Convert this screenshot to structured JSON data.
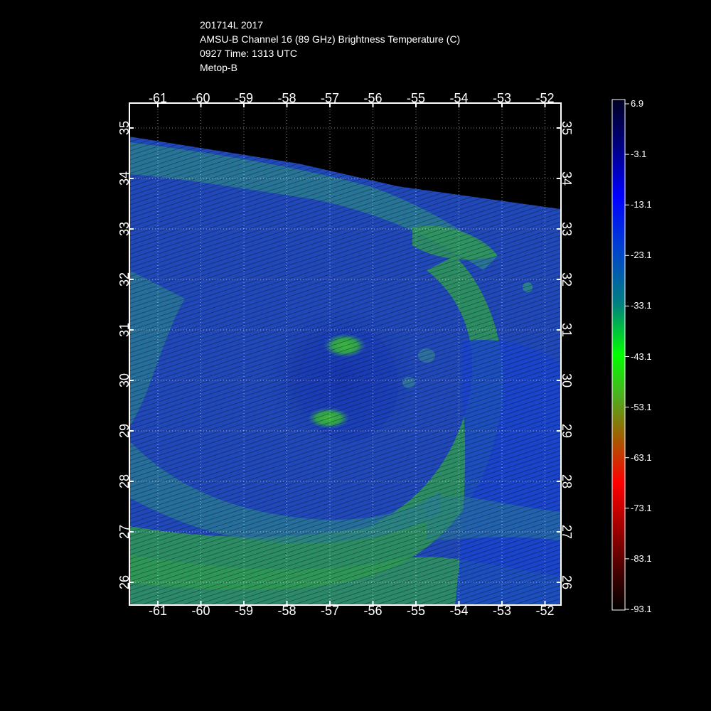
{
  "header": {
    "line1": "201714L 2017",
    "line2": "AMSU-B Channel 16 (89 GHz) Brightness Temperature (C)",
    "line3": "0927 Time: 1313 UTC",
    "line4": "Metop-B"
  },
  "map": {
    "lon_ticks": [
      "-61",
      "-60",
      "-59",
      "-58",
      "-57",
      "-56",
      "-55",
      "-54",
      "-53",
      "-52"
    ],
    "lat_ticks": [
      "35",
      "34",
      "33",
      "32",
      "31",
      "30",
      "29",
      "28",
      "27",
      "26"
    ],
    "grid": true
  },
  "colorbar": {
    "labels": [
      "6.9",
      "-3.1",
      "-13.1",
      "-23.1",
      "-33.1",
      "-43.1",
      "-53.1",
      "-63.1",
      "-73.1",
      "-83.1",
      "-93.1"
    ],
    "colors": [
      "#000022",
      "#00008a",
      "#0000ff",
      "#0044cc",
      "#008080",
      "#00cc33",
      "#00ff00",
      "#66aa00",
      "#aa6600",
      "#ff0000",
      "#aa0000",
      "#550000",
      "#000000"
    ]
  }
}
